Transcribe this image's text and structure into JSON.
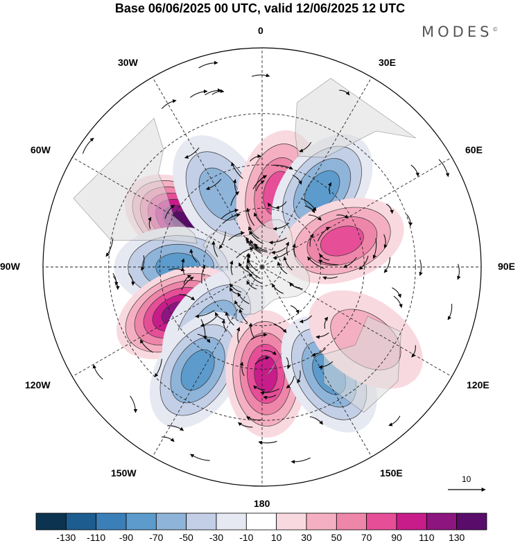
{
  "title": "Base 06/06/2025 00 UTC, valid 12/06/2025 12 UTC",
  "brand": "MODES",
  "brand_mark": "©",
  "longitude_labels": [
    "0",
    "30E",
    "60E",
    "90E",
    "120E",
    "150E",
    "180",
    "150W",
    "120W",
    "90W",
    "60W",
    "30W"
  ],
  "reference_vector": {
    "value": "10",
    "icon": "arrow-right-icon"
  },
  "colorbar": {
    "colors": [
      "#0c3450",
      "#1d5c8e",
      "#3b7fb9",
      "#5c9bcc",
      "#8fb4d9",
      "#c3cfe6",
      "#e6e8f2",
      "#ffffff",
      "#f9d9e0",
      "#f4b0c2",
      "#ee86aa",
      "#e64e98",
      "#c81c8a",
      "#8d1580",
      "#5a0c6a"
    ],
    "labels": [
      "-130",
      "-110",
      "-90",
      "-70",
      "-50",
      "-30",
      "-10",
      "10",
      "30",
      "50",
      "70",
      "90",
      "110",
      "130"
    ]
  },
  "map": {
    "projection": "south polar stereographic",
    "land_color": "#ededed",
    "anomaly_centers": [
      {
        "lon": -60,
        "lat": -45,
        "value": 130
      },
      {
        "lon": -30,
        "lat": -48,
        "value": -60
      },
      {
        "lon": 12,
        "lat": -52,
        "value": 70
      },
      {
        "lon": 38,
        "lat": -42,
        "value": -70
      },
      {
        "lon": 72,
        "lat": -48,
        "value": 70
      },
      {
        "lon": -90,
        "lat": -48,
        "value": -70
      },
      {
        "lon": -118,
        "lat": -42,
        "value": 120
      },
      {
        "lon": -140,
        "lat": -52,
        "value": -60
      },
      {
        "lon": -148,
        "lat": -32,
        "value": -75
      },
      {
        "lon": 178,
        "lat": -38,
        "value": 100
      },
      {
        "lon": 148,
        "lat": -30,
        "value": -75
      },
      {
        "lon": 125,
        "lat": -30,
        "value": 30
      }
    ]
  }
}
